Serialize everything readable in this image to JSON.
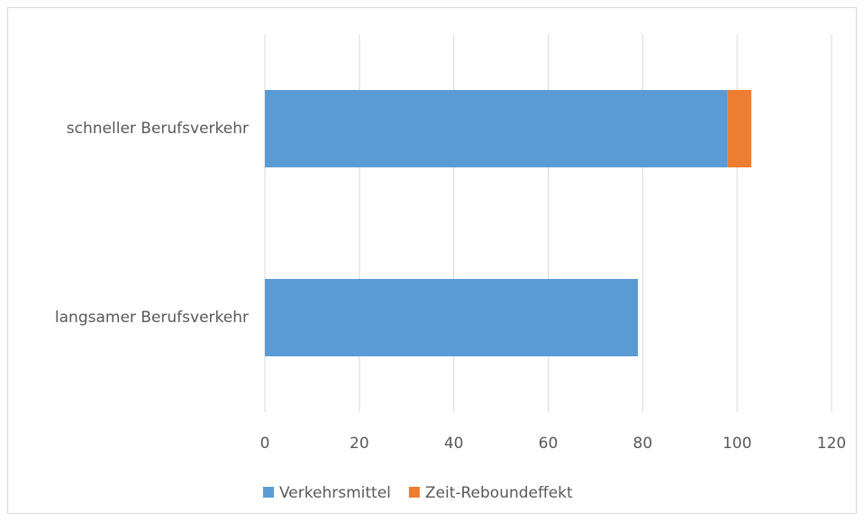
{
  "chart_data": {
    "type": "stacked_bar_horizontal",
    "categories": [
      "schneller Berufsverkehr",
      "langsamer Berufsverkehr"
    ],
    "series": [
      {
        "name": "Verkehrsmittel",
        "color": "#5b9bd5",
        "values": [
          98,
          79
        ]
      },
      {
        "name": "Zeit-Reboundeffekt",
        "color": "#ed7d31",
        "values": [
          5,
          0
        ]
      }
    ],
    "xlim": [
      0,
      120
    ],
    "xticks": [
      0,
      20,
      40,
      60,
      80,
      100,
      120
    ],
    "grid": true,
    "legend": "bottom"
  }
}
